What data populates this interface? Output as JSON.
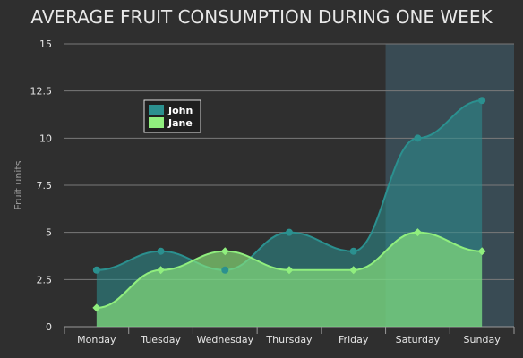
{
  "chart_data": {
    "type": "area",
    "title": "AVERAGE FRUIT CONSUMPTION DURING ONE WEEK",
    "xlabel": "",
    "ylabel": "Fruit units",
    "categories": [
      "Monday",
      "Tuesday",
      "Wednesday",
      "Thursday",
      "Friday",
      "Saturday",
      "Sunday"
    ],
    "y_ticks": [
      "0",
      "2.5",
      "5",
      "7.5",
      "10",
      "12.5",
      "15"
    ],
    "ylim": [
      0,
      15
    ],
    "grid": true,
    "legend_position": "top-left",
    "plot_band": {
      "from_category": "Saturday",
      "to_category": "Sunday"
    },
    "series": [
      {
        "name": "John",
        "values": [
          3,
          4,
          3,
          5,
          4,
          10,
          12
        ],
        "color": "#2b908f"
      },
      {
        "name": "Jane",
        "values": [
          1,
          3,
          4,
          3,
          3,
          5,
          4
        ],
        "color": "#90ee7e"
      }
    ]
  }
}
